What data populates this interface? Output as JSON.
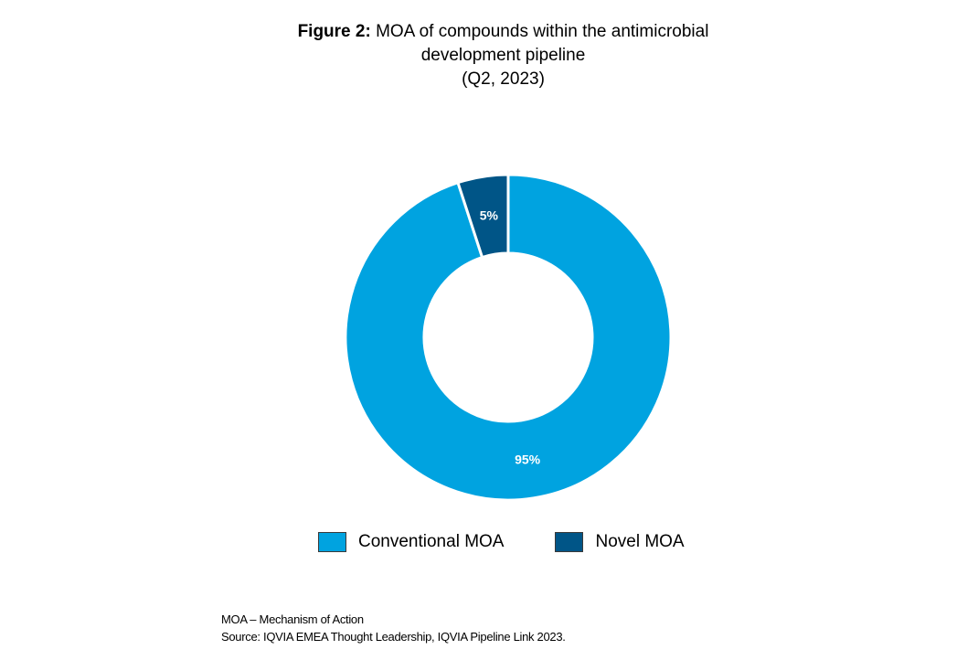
{
  "title": {
    "prefix": "Figure 2:",
    "line1": " MOA of compounds  within the antimicrobial",
    "line2": "development  pipeline",
    "line3": "(Q2, 2023)"
  },
  "chart_data": {
    "type": "pie",
    "donut": true,
    "slices": [
      {
        "name": "Conventional MOA",
        "value": 95,
        "label": "95%",
        "color": "#00a3e0"
      },
      {
        "name": "Novel MOA",
        "value": 5,
        "label": "5%",
        "color": "#005587"
      }
    ],
    "legend_position": "bottom"
  },
  "legend": {
    "items": [
      {
        "label": "Conventional MOA",
        "color": "#00a3e0"
      },
      {
        "label": "Novel MOA",
        "color": "#005587"
      }
    ]
  },
  "footnote": {
    "line1": "MOA – Mechanism of Action",
    "line2": "Source: IQVIA EMEA Thought Leadership, IQVIA Pipeline Link 2023."
  }
}
